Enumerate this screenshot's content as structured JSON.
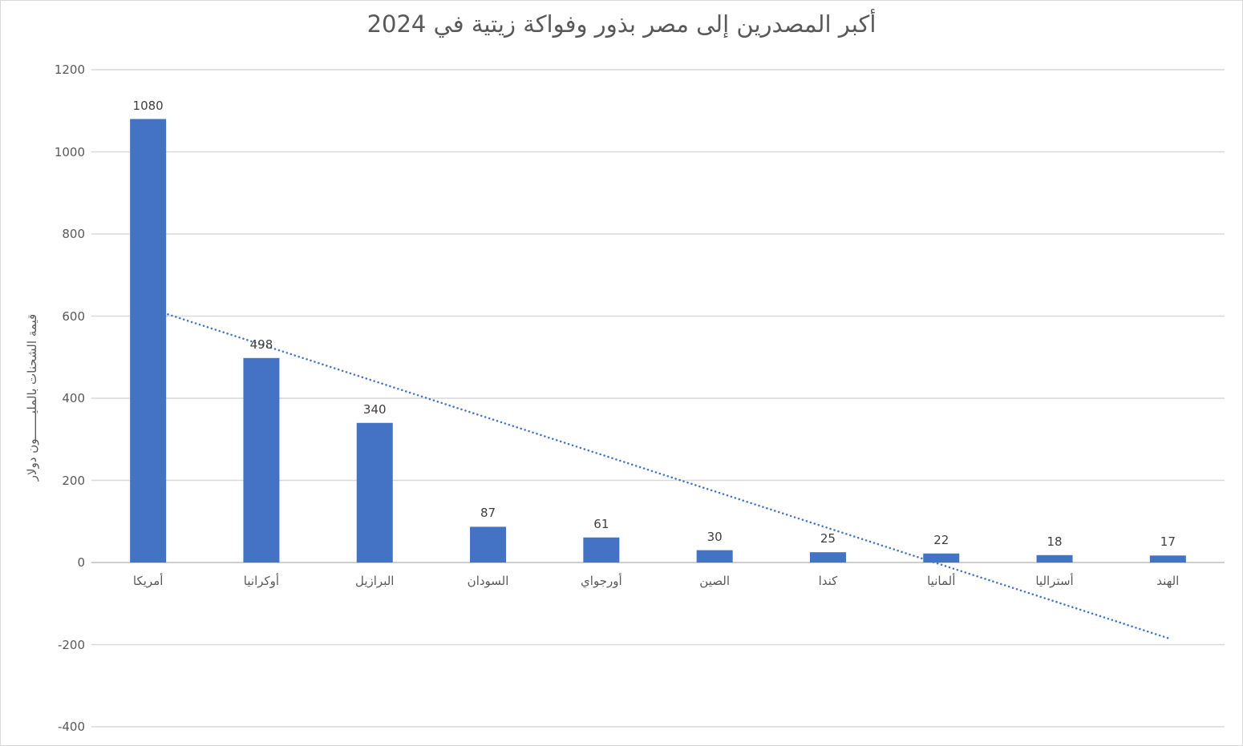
{
  "chart_data": {
    "type": "bar",
    "title": "أكبر المصدرين إلى مصر بذور وفواكة زيتية في 2024",
    "categories": [
      "أمريكا",
      "أوكرانيا",
      "البرازيل",
      "السودان",
      "أورجواي",
      "الصين",
      "كندا",
      "ألمانيا",
      "أستراليا",
      "الهند"
    ],
    "values": [
      1080,
      498,
      340,
      87,
      61,
      30,
      25,
      22,
      18,
      17
    ],
    "data_labels": [
      "1080",
      "498",
      "340",
      "87",
      "61",
      "30",
      "25",
      "22",
      "18",
      "17"
    ],
    "xlabel": "",
    "ylabel": "قيمة الشحنات بالمليـــــــون دولار",
    "ylim": [
      -400,
      1200
    ],
    "ytick_step": 200,
    "ytick_labels": [
      "1200",
      "1000",
      "800",
      "600",
      "400",
      "200",
      "0",
      "-200",
      "-400"
    ],
    "grid": true,
    "legend": false,
    "trendline": {
      "type": "linear",
      "line_style": "dotted",
      "start_value": 620,
      "end_value": -184
    },
    "colors": {
      "bar": "#4472C4",
      "trendline": "#4472C4",
      "gridline": "#D9D9D9",
      "axis_line": "#BFBFBF",
      "text": "#595959",
      "data_label": "#404040",
      "border": "#D9D9D9",
      "background": "#FFFFFF"
    }
  }
}
